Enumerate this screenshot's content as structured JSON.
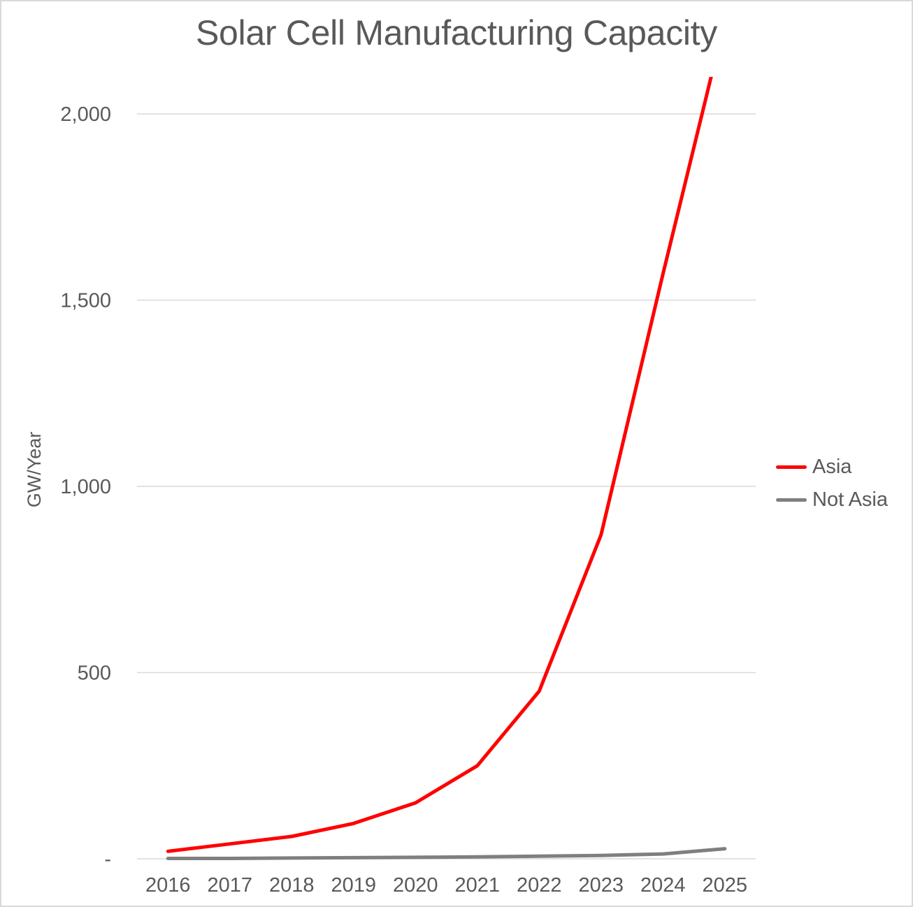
{
  "chart_data": {
    "type": "line",
    "title": "Solar Cell Manufacturing Capacity",
    "xlabel": "",
    "ylabel": "GW/Year",
    "ylim": [
      0,
      2100
    ],
    "yticks": [
      0,
      500,
      1000,
      1500,
      2000
    ],
    "ytick_labels": [
      "-",
      "500",
      "1,000",
      "1,500",
      "2,000"
    ],
    "grid": true,
    "legend_position": "right",
    "categories": [
      "2016",
      "2017",
      "2018",
      "2019",
      "2020",
      "2021",
      "2022",
      "2023",
      "2024",
      "2025"
    ],
    "series": [
      {
        "name": "Asia",
        "color": "#ff0000",
        "values": [
          20,
          40,
          60,
          95,
          150,
          250,
          450,
          870,
          1570,
          2250
        ]
      },
      {
        "name": "Not Asia",
        "color": "#7f7f7f",
        "values": [
          1,
          1,
          2,
          3,
          4,
          5,
          7,
          9,
          13,
          27
        ]
      }
    ]
  }
}
